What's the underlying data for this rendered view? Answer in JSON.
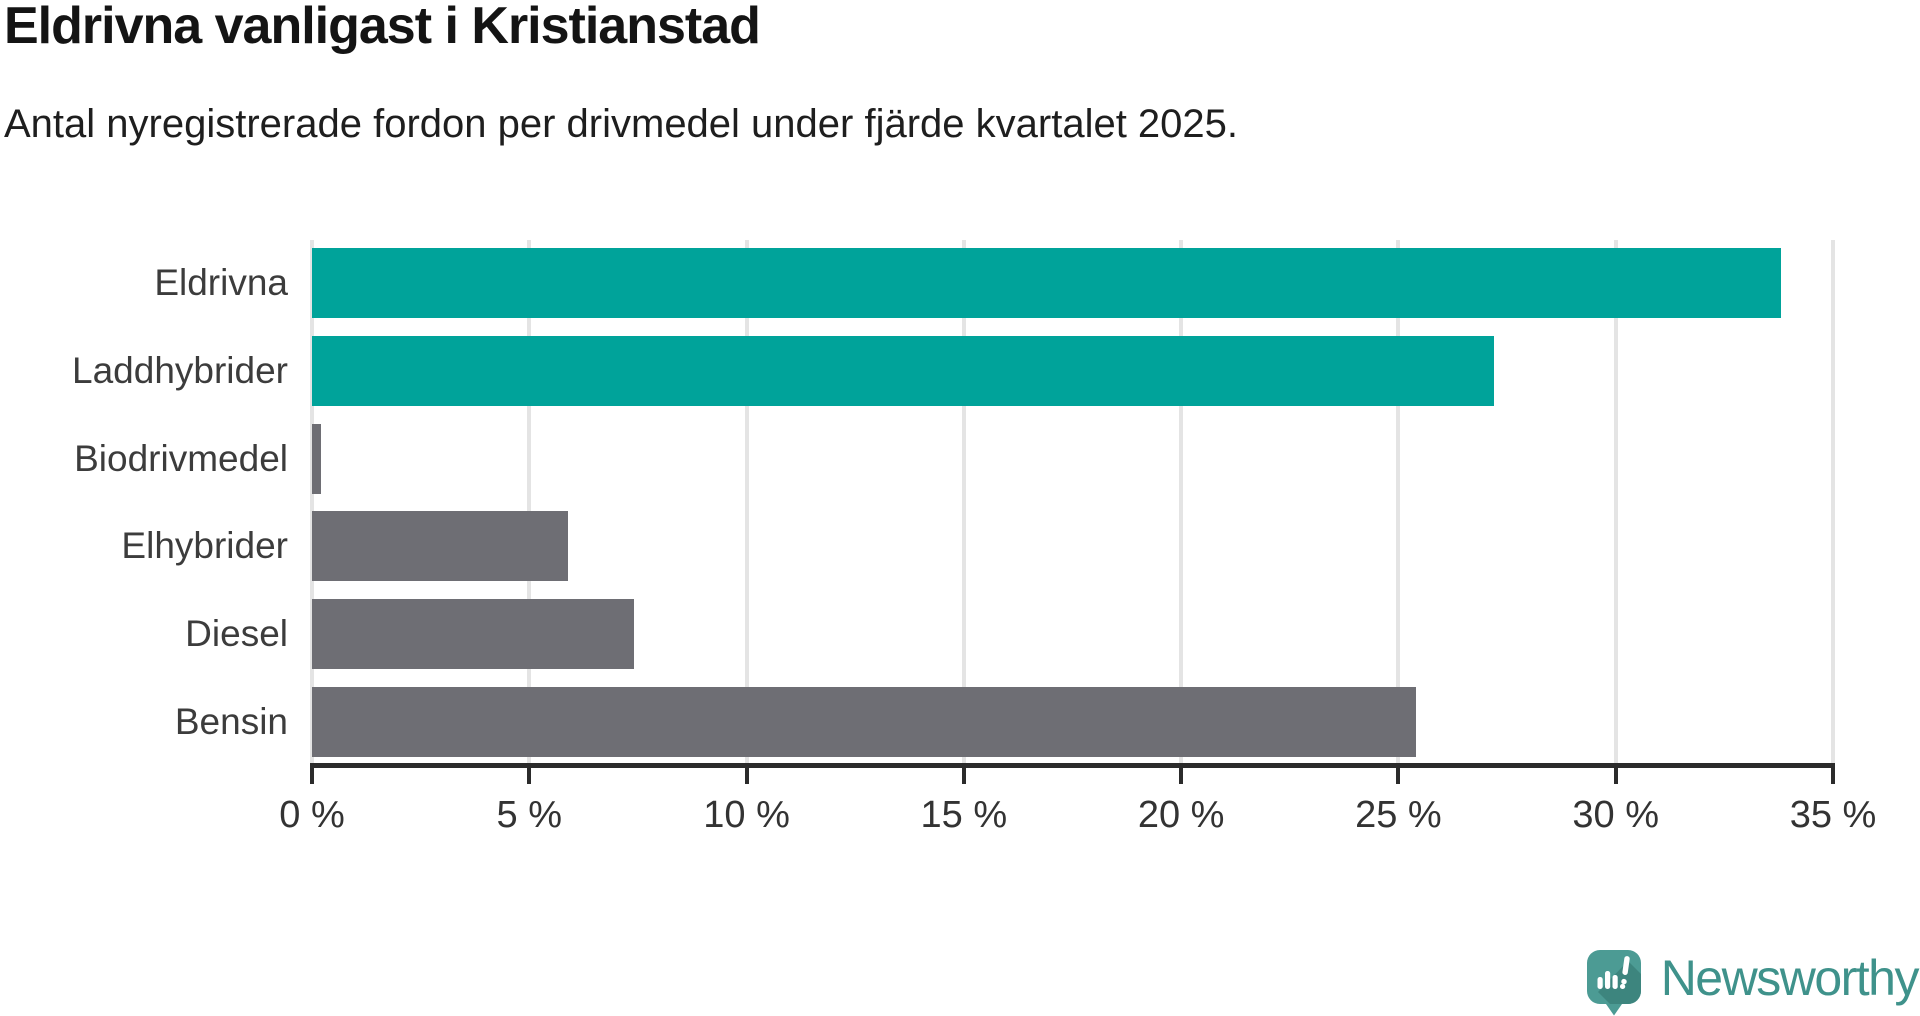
{
  "chart_data": {
    "type": "bar",
    "orientation": "horizontal",
    "title": "Eldrivna vanligast i Kristianstad",
    "subtitle": "Antal nyregistrerade fordon per drivmedel under fjärde kvartalet 2025.",
    "categories": [
      "Eldrivna",
      "Laddhybrider",
      "Biodrivmedel",
      "Elhybrider",
      "Diesel",
      "Bensin"
    ],
    "values": [
      33.8,
      27.2,
      0.2,
      5.9,
      7.4,
      25.4
    ],
    "unit": "%",
    "bar_colors": [
      "#00a39a",
      "#00a39a",
      "#6e6e74",
      "#6e6e74",
      "#6e6e74",
      "#6e6e74"
    ],
    "xlim": [
      0,
      35
    ],
    "x_tick_labels": [
      "0 %",
      "5 %",
      "10 %",
      "15 %",
      "20 %",
      "25 %",
      "30 %",
      "35 %"
    ],
    "grid": "vertical light-gray gridlines at every 5%",
    "legend": "none"
  },
  "colors": {
    "highlight_teal": "#00a39a",
    "neutral_gray": "#6e6e74",
    "gridline": "#e4e4e4",
    "axis": "#2b2b2b",
    "background": "#ffffff"
  },
  "branding": {
    "logo_text": "Newsworthy",
    "logo_text_color": "#3f928b",
    "icon": "newsworthy-chart-speech-bubble-icon",
    "icon_fill": "#4c9b94",
    "icon_shadow": "#3d857e"
  }
}
